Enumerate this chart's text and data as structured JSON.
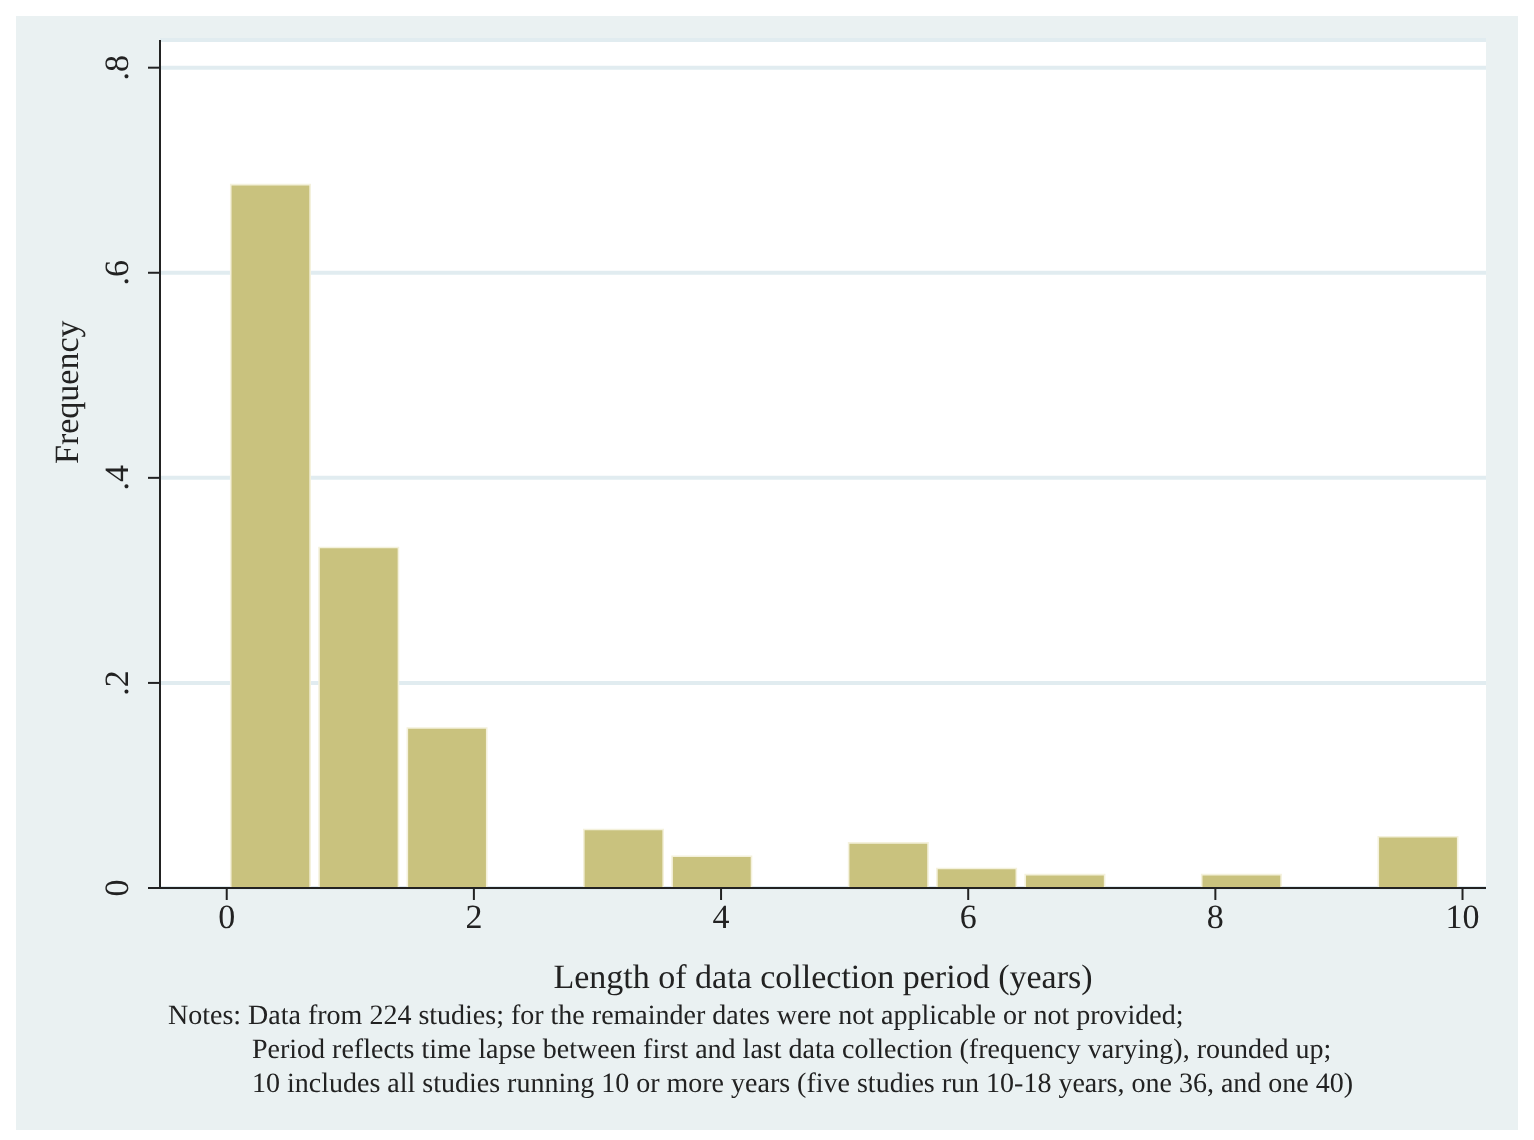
{
  "chart_data": {
    "type": "histogram",
    "xlabel": "Length of data collection period (years)",
    "ylabel": "Frequency",
    "bins": [
      0,
      0.714,
      1.429,
      2.143,
      2.857,
      3.571,
      4.286,
      5,
      5.714,
      6.429,
      7.143,
      7.857,
      8.571,
      9.286,
      10
    ],
    "values": [
      0.686,
      0.332,
      0.156,
      0,
      0.057,
      0.031,
      0,
      0.044,
      0.019,
      0.013,
      0,
      0.013,
      0,
      0.05
    ],
    "color": "#c9c27e",
    "xlim": [
      -0.54,
      10.19
    ],
    "xticks": [
      0,
      2,
      4,
      6,
      8,
      10
    ],
    "ylim": [
      0,
      0.827
    ],
    "yticks": [
      {
        "value": 0,
        "label": "0"
      },
      {
        "value": 0.2,
        "label": ".2"
      },
      {
        "value": 0.4,
        "label": ".4"
      },
      {
        "value": 0.6,
        "label": ".6"
      },
      {
        "value": 0.8,
        "label": ".8"
      }
    ],
    "grid": "y",
    "annotations": [
      "Notes: Data from 224 studies; for the remainder dates were not applicable or not provided;",
      "Period reflects time lapse between first and last data collection (frequency varying), rounded up;",
      "10 includes all studies running 10 or more years (five studies run 10-18 years, one 36, and one 40)"
    ]
  }
}
